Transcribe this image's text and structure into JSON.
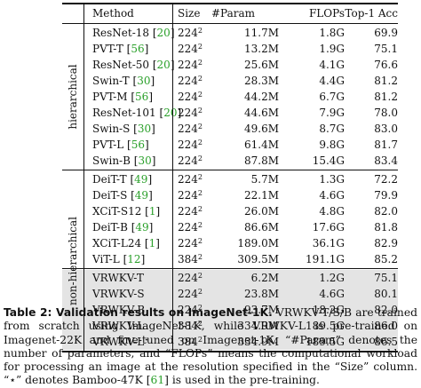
{
  "table": {
    "headers": {
      "method": "Method",
      "size": "Size",
      "param": "#Param",
      "flops": "FLOPs",
      "acc": "Top-1 Acc"
    },
    "groups": [
      {
        "label": "hierarchical",
        "rows": [
          {
            "method": "ResNet-18",
            "cite": "20",
            "size": "224",
            "exp": "2",
            "param": "11.7M",
            "flops": "1.8G",
            "acc": "69.9"
          },
          {
            "method": "PVT-T",
            "cite": "56",
            "size": "224",
            "exp": "2",
            "param": "13.2M",
            "flops": "1.9G",
            "acc": "75.1"
          },
          {
            "method": "ResNet-50",
            "cite": "20",
            "size": "224",
            "exp": "2",
            "param": "25.6M",
            "flops": "4.1G",
            "acc": "76.6"
          },
          {
            "method": "Swin-T",
            "cite": "30",
            "size": "224",
            "exp": "2",
            "param": "28.3M",
            "flops": "4.4G",
            "acc": "81.2"
          },
          {
            "method": "PVT-M",
            "cite": "56",
            "size": "224",
            "exp": "2",
            "param": "44.2M",
            "flops": "6.7G",
            "acc": "81.2"
          },
          {
            "method": "ResNet-101",
            "cite": "20",
            "size": "224",
            "exp": "2",
            "param": "44.6M",
            "flops": "7.9G",
            "acc": "78.0"
          },
          {
            "method": "Swin-S",
            "cite": "30",
            "size": "224",
            "exp": "2",
            "param": "49.6M",
            "flops": "8.7G",
            "acc": "83.0"
          },
          {
            "method": "PVT-L",
            "cite": "56",
            "size": "224",
            "exp": "2",
            "param": "61.4M",
            "flops": "9.8G",
            "acc": "81.7"
          },
          {
            "method": "Swin-B",
            "cite": "30",
            "size": "224",
            "exp": "2",
            "param": "87.8M",
            "flops": "15.4G",
            "acc": "83.4"
          }
        ]
      },
      {
        "label": "non-hierarchical",
        "rows": [
          {
            "method": "DeiT-T",
            "cite": "49",
            "size": "224",
            "exp": "2",
            "param": "5.7M",
            "flops": "1.3G",
            "acc": "72.2"
          },
          {
            "method": "DeiT-S",
            "cite": "49",
            "size": "224",
            "exp": "2",
            "param": "22.1M",
            "flops": "4.6G",
            "acc": "79.9"
          },
          {
            "method": "XCiT-S12",
            "cite": "1",
            "size": "224",
            "exp": "2",
            "param": "26.0M",
            "flops": "4.8G",
            "acc": "82.0"
          },
          {
            "method": "DeiT-B",
            "cite": "49",
            "size": "224",
            "exp": "2",
            "param": "86.6M",
            "flops": "17.6G",
            "acc": "81.8"
          },
          {
            "method": "XCiT-L24",
            "cite": "1",
            "size": "224",
            "exp": "2",
            "param": "189.0M",
            "flops": "36.1G",
            "acc": "82.9"
          },
          {
            "method": "ViT-L",
            "cite": "12",
            "size": "384",
            "exp": "2",
            "param": "309.5M",
            "flops": "191.1G",
            "acc": "85.2"
          },
          {
            "method": "VRWKV-T",
            "cite": "",
            "size": "224",
            "exp": "2",
            "param": "6.2M",
            "flops": "1.2G",
            "acc": "75.1"
          },
          {
            "method": "VRWKV-S",
            "cite": "",
            "size": "224",
            "exp": "2",
            "param": "23.8M",
            "flops": "4.6G",
            "acc": "80.1"
          },
          {
            "method": "VRWKV-B",
            "cite": "",
            "size": "224",
            "exp": "2",
            "param": "93.7M",
            "flops": "18.2G",
            "acc": "82.0"
          },
          {
            "method": "VRWKV-L",
            "cite": "",
            "size": "384",
            "exp": "2",
            "param": "334.9M",
            "flops": "189.5G",
            "acc": "86.0"
          },
          {
            "method": "VRWKV-L",
            "cite": "",
            "star": "⋆",
            "size": "384",
            "exp": "2",
            "param": "334.9M",
            "flops": "189.5G",
            "acc": "86.5"
          }
        ]
      }
    ]
  },
  "caption": {
    "label": "Table 2: Validation results on ImageNet-1K.",
    "text_before_cite": " VRWKV-T/S/B are trained from scratch using ImageNet-1K, while VRWKV-L is pre-trained on Imagenet-22K and fine-tuned on Imagenet-1K. “#Param” denotes the number of parameters, and “FLOPs” means the computational workload for processing an image at the resolution specified in the “Size” column. “⋆” denotes Bamboo-47K [",
    "cite": "61",
    "text_after_cite": "] is used in the pre-training."
  }
}
